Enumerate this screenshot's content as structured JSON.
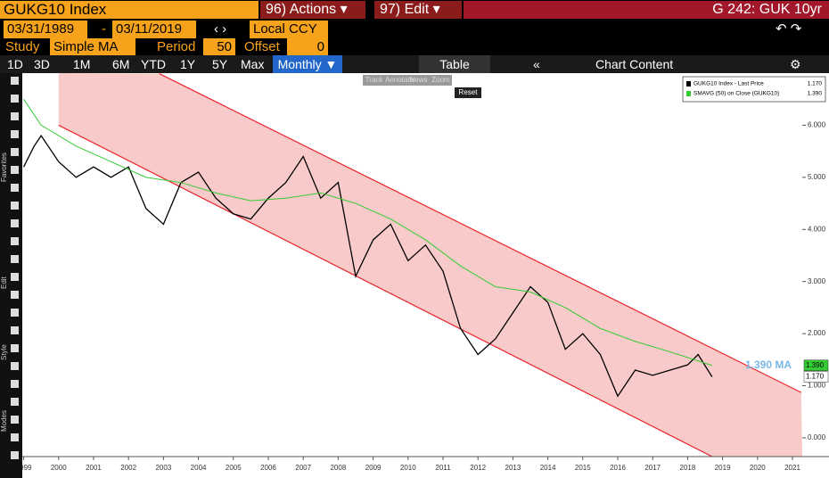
{
  "header": {
    "security": "GUKG10 Index",
    "actions": "96) Actions",
    "edit": "97) Edit",
    "function": "G 242: GUK 10yr"
  },
  "range": {
    "start": "03/31/1989",
    "end": "03/11/2019",
    "currency": "Local CCY"
  },
  "study": {
    "label": "Study",
    "type": "Simple MA",
    "period_label": "Period",
    "period": 50,
    "offset_label": "Offset",
    "offset": 0
  },
  "toolbar": {
    "periods": [
      "1D",
      "3D",
      "1M",
      "6M",
      "YTD",
      "1Y",
      "5Y",
      "Max"
    ],
    "frequency": "Monthly",
    "table": "Table",
    "content": "Chart Content"
  },
  "menu": [
    "Track",
    "Annotate",
    "News",
    "Zoom"
  ],
  "reset": "Reset",
  "sidebar": [
    "Favorites",
    "Edit",
    "Style",
    "Modes"
  ],
  "chart_data": {
    "type": "line",
    "xlim": [
      1999.46,
      2021.78
    ],
    "ylim": [
      -0.36,
      7.0
    ],
    "xticks": [
      {
        "value": 1999.5,
        "label": "1999"
      },
      {
        "value": 2000.5,
        "label": "2000"
      },
      {
        "value": 2001.5,
        "label": "2001"
      },
      {
        "value": 2002.5,
        "label": "2002"
      },
      {
        "value": 2003.5,
        "label": "2003"
      },
      {
        "value": 2004.5,
        "label": "2004"
      },
      {
        "value": 2005.5,
        "label": "2005"
      },
      {
        "value": 2006.5,
        "label": "2006"
      },
      {
        "value": 2007.5,
        "label": "2007"
      },
      {
        "value": 2008.5,
        "label": "2008"
      },
      {
        "value": 2009.5,
        "label": "2009"
      },
      {
        "value": 2010.5,
        "label": "2010"
      },
      {
        "value": 2011.5,
        "label": "2011"
      },
      {
        "value": 2012.5,
        "label": "2012"
      },
      {
        "value": 2013.5,
        "label": "2013"
      },
      {
        "value": 2014.5,
        "label": "2014"
      },
      {
        "value": 2015.5,
        "label": "2015"
      },
      {
        "value": 2016.5,
        "label": "2016"
      },
      {
        "value": 2017.5,
        "label": "2017"
      },
      {
        "value": 2018.5,
        "label": "2018"
      },
      {
        "value": 2019.5,
        "label": "2019"
      },
      {
        "value": 2020.5,
        "label": "2020"
      },
      {
        "value": 2021.5,
        "label": "2021"
      }
    ],
    "yticks": [
      {
        "value": 0,
        "label": "0.000"
      },
      {
        "value": 1,
        "label": "1.000"
      },
      {
        "value": 2,
        "label": "2.000"
      },
      {
        "value": 3,
        "label": "3.000"
      },
      {
        "value": 4,
        "label": "4.000"
      },
      {
        "value": 5,
        "label": "5.000"
      },
      {
        "value": 6,
        "label": "6.000"
      }
    ],
    "series": [
      {
        "name": "GUKG10 Index - Last Price",
        "color": "#000000",
        "last_label": "1.170",
        "x": [
          1999.5,
          1999.8,
          2000.0,
          2000.5,
          2001.0,
          2001.5,
          2002.0,
          2002.5,
          2003.0,
          2003.5,
          2004.0,
          2004.5,
          2005.0,
          2005.5,
          2006.0,
          2006.5,
          2007.0,
          2007.5,
          2008.0,
          2008.5,
          2009.0,
          2009.5,
          2010.0,
          2010.5,
          2011.0,
          2011.5,
          2012.0,
          2012.5,
          2013.0,
          2013.5,
          2014.0,
          2014.5,
          2015.0,
          2015.5,
          2016.0,
          2016.5,
          2017.0,
          2017.5,
          2018.0,
          2018.5,
          2018.8,
          2019.2
        ],
        "values": [
          5.2,
          5.6,
          5.8,
          5.3,
          5.0,
          5.2,
          5.0,
          5.2,
          4.4,
          4.1,
          4.9,
          5.1,
          4.6,
          4.3,
          4.2,
          4.6,
          4.9,
          5.4,
          4.6,
          4.9,
          3.1,
          3.8,
          4.1,
          3.4,
          3.7,
          3.2,
          2.1,
          1.6,
          1.9,
          2.4,
          2.9,
          2.6,
          1.7,
          2.0,
          1.6,
          0.8,
          1.3,
          1.2,
          1.3,
          1.4,
          1.6,
          1.17
        ]
      },
      {
        "name": "SMAVG (50)  on Close (GUKG10)",
        "color": "#33cc33",
        "last_label": "1.390",
        "x": [
          1999.5,
          2000.0,
          2001.0,
          2002.0,
          2003.0,
          2004.0,
          2005.0,
          2006.0,
          2007.0,
          2008.0,
          2009.0,
          2010.0,
          2011.0,
          2012.0,
          2013.0,
          2014.0,
          2015.0,
          2016.0,
          2017.0,
          2018.0,
          2019.2
        ],
        "values": [
          6.5,
          6.0,
          5.6,
          5.3,
          5.0,
          4.9,
          4.7,
          4.55,
          4.6,
          4.7,
          4.5,
          4.2,
          3.8,
          3.3,
          2.9,
          2.8,
          2.5,
          2.1,
          1.85,
          1.65,
          1.39
        ]
      }
    ],
    "channel": {
      "color": "#e8262c",
      "fill": "#f9caca",
      "upper": {
        "x": [
          2003.38,
          2021.75
        ],
        "values": [
          6.99,
          0.87
        ]
      },
      "lower": {
        "x": [
          2000.5,
          2019.2
        ],
        "values": [
          6.0,
          -0.36
        ]
      }
    },
    "annotation": "1.390 MA"
  }
}
